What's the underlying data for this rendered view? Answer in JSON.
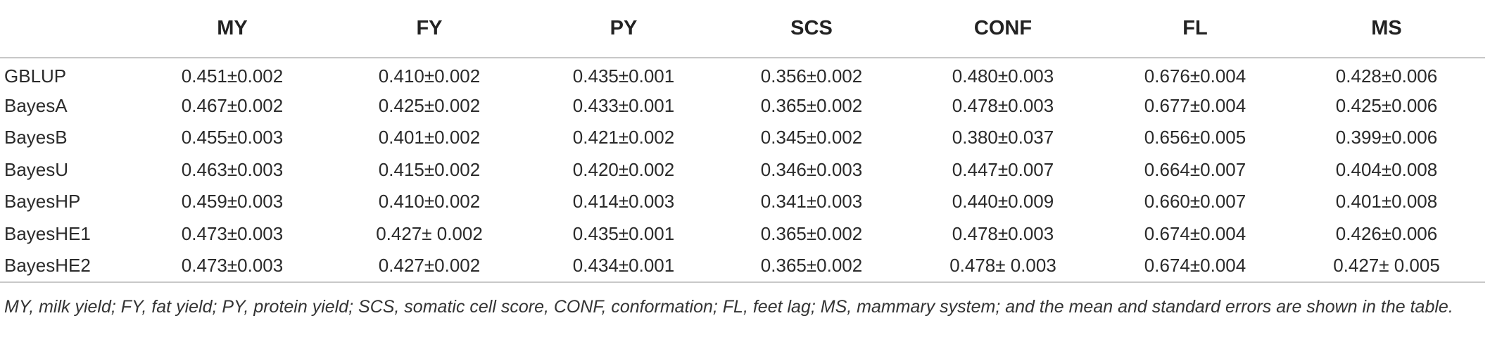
{
  "table": {
    "columns": [
      "",
      "MY",
      "FY",
      "PY",
      "SCS",
      "CONF",
      "FL",
      "MS"
    ],
    "rows": [
      [
        "GBLUP",
        "0.451±0.002",
        "0.410±0.002",
        "0.435±0.001",
        "0.356±0.002",
        "0.480±0.003",
        "0.676±0.004",
        "0.428±0.006"
      ],
      [
        "BayesA",
        "0.467±0.002",
        "0.425±0.002",
        "0.433±0.001",
        "0.365±0.002",
        "0.478±0.003",
        "0.677±0.004",
        "0.425±0.006"
      ],
      [
        "BayesB",
        "0.455±0.003",
        "0.401±0.002",
        "0.421±0.002",
        "0.345±0.002",
        "0.380±0.037",
        "0.656±0.005",
        "0.399±0.006"
      ],
      [
        "BayesU",
        "0.463±0.003",
        "0.415±0.002",
        "0.420±0.002",
        "0.346±0.003",
        "0.447±0.007",
        "0.664±0.007",
        "0.404±0.008"
      ],
      [
        "BayesHP",
        "0.459±0.003",
        "0.410±0.002",
        "0.414±0.003",
        "0.341±0.003",
        "0.440±0.009",
        "0.660±0.007",
        "0.401±0.008"
      ],
      [
        "BayesHE1",
        "0.473±0.003",
        "0.427± 0.002",
        "0.435±0.001",
        "0.365±0.002",
        "0.478±0.003",
        "0.674±0.004",
        "0.426±0.006"
      ],
      [
        "BayesHE2",
        "0.473±0.003",
        "0.427±0.002",
        "0.434±0.001",
        "0.365±0.002",
        "0.478± 0.003",
        "0.674±0.004",
        "0.427± 0.005"
      ]
    ]
  },
  "footnote": "MY, milk yield; FY, fat yield; PY, protein yield; SCS, somatic cell score, CONF, conformation; FL, feet lag; MS, mammary system; and the mean and standard errors are shown in the table."
}
